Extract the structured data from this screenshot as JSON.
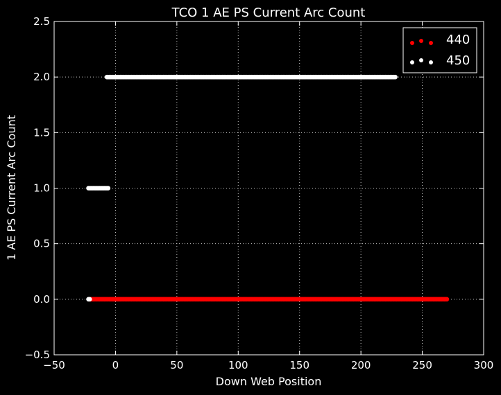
{
  "chart_data": {
    "type": "scatter",
    "title": "TCO 1 AE PS Current Arc Count",
    "xlabel": "Down Web Position",
    "ylabel": "1 AE PS Current Arc Count",
    "xlim": [
      -50,
      300
    ],
    "ylim": [
      -0.5,
      2.5
    ],
    "xticks": [
      "−50",
      "0",
      "50",
      "100",
      "150",
      "200",
      "250",
      "300"
    ],
    "xtick_values": [
      -50,
      0,
      50,
      100,
      150,
      200,
      250,
      300
    ],
    "yticks": [
      "−0.5",
      "0.0",
      "0.5",
      "1.0",
      "1.5",
      "2.0",
      "2.5"
    ],
    "ytick_values": [
      -0.5,
      0.0,
      0.5,
      1.0,
      1.5,
      2.0,
      2.5
    ],
    "grid": true,
    "legend_position": "top-right",
    "background": "#000000",
    "series": [
      {
        "name": "440",
        "color": "#ff0000",
        "y": 0.0,
        "x_start": -21,
        "x_end": 270,
        "step": 1
      },
      {
        "name": "450",
        "color": "#ffffff",
        "segments": [
          {
            "y": 0.0,
            "x_start": -22,
            "x_end": -21,
            "step": 1
          },
          {
            "y": 1.0,
            "x_start": -22,
            "x_end": -6,
            "step": 1
          },
          {
            "y": 2.0,
            "x_start": -7,
            "x_end": 228,
            "step": 1
          }
        ]
      }
    ]
  }
}
